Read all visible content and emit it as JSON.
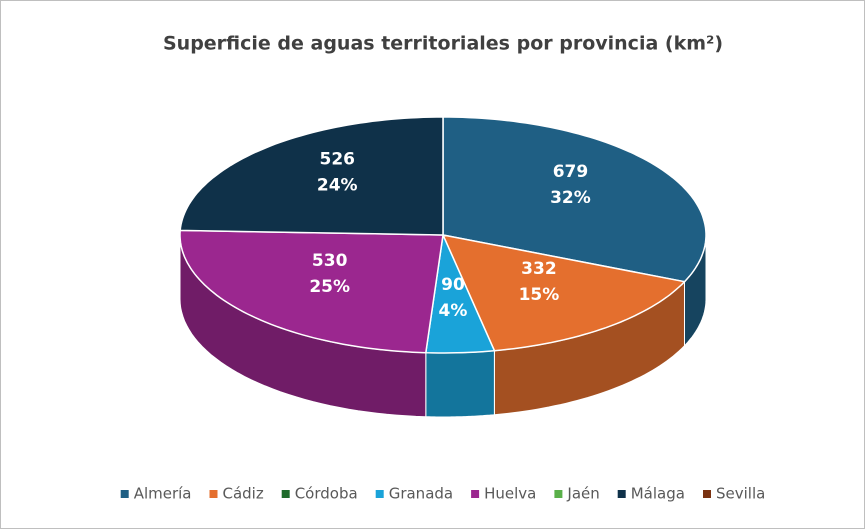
{
  "chart_data": {
    "type": "pie3d",
    "title": "Superficie de aguas territoriales por provincia (km²)",
    "categories": [
      "Almería",
      "Cádiz",
      "Córdoba",
      "Granada",
      "Huelva",
      "Jaén",
      "Málaga",
      "Sevilla"
    ],
    "values": [
      679,
      332,
      0,
      90,
      530,
      0,
      526,
      0
    ],
    "percent_labels": [
      "32%",
      "15%",
      null,
      "4%",
      "25%",
      null,
      "24%",
      null
    ],
    "colors": [
      "#1f5f84",
      "#e46f2e",
      "#1e6b2b",
      "#1aa3d9",
      "#9b278f",
      "#5ab04a",
      "#0f3149",
      "#7a3211"
    ],
    "legend": "bottom"
  }
}
